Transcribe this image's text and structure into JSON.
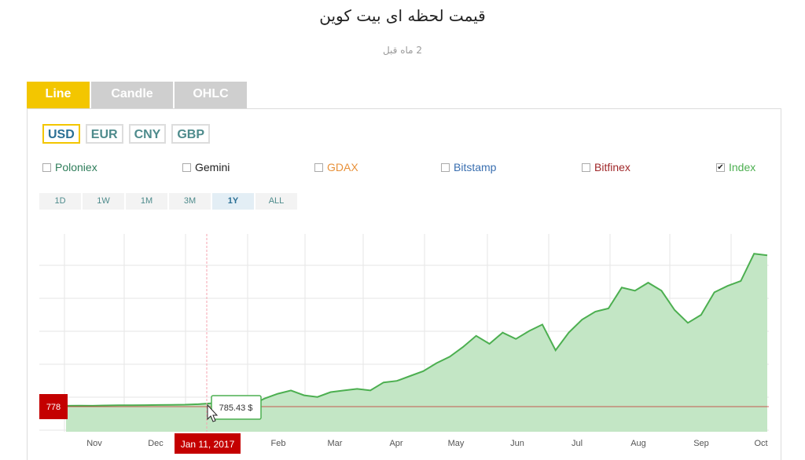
{
  "header": {
    "title": "قیمت لحظه ای بیت کوین",
    "subtitle": "2 ماه قبل"
  },
  "tabs": [
    {
      "label": "Line"
    },
    {
      "label": "Candle"
    },
    {
      "label": "OHLC"
    }
  ],
  "currencies": [
    {
      "label": "USD"
    },
    {
      "label": "EUR"
    },
    {
      "label": "CNY"
    },
    {
      "label": "GBP"
    }
  ],
  "exchanges": [
    {
      "label": "Poloniex",
      "checked": false,
      "color": "#2e7d5a"
    },
    {
      "label": "Gemini",
      "checked": false,
      "color": "#222222"
    },
    {
      "label": "GDAX",
      "checked": false,
      "color": "#e8913a"
    },
    {
      "label": "Bitstamp",
      "checked": false,
      "color": "#3a6fb0"
    },
    {
      "label": "Bitfinex",
      "checked": false,
      "color": "#a0282a"
    },
    {
      "label": "Index",
      "checked": true,
      "check_mark": "✔",
      "color": "#4caf50"
    }
  ],
  "ranges": [
    {
      "label": "1D"
    },
    {
      "label": "1W"
    },
    {
      "label": "1M"
    },
    {
      "label": "3M"
    },
    {
      "label": "1Y"
    },
    {
      "label": "ALL"
    }
  ],
  "colors": {
    "accent": "#f3c600",
    "line": "#4caf50",
    "fill": "#c3e6c5",
    "marker": "#c40000"
  },
  "chart_data": {
    "type": "area",
    "x_tick_labels": [
      "Nov",
      "Dec",
      "Jan 11, 2017",
      "Feb",
      "Mar",
      "Apr",
      "May",
      "Jun",
      "Jul",
      "Aug",
      "Sep",
      "Oct"
    ],
    "highlighted_x_label": "Jan 11, 2017",
    "price_marker": "778",
    "tooltip": "785.43 $",
    "series": [
      {
        "values": [
          0.015,
          0.016,
          0.015,
          0.017,
          0.018,
          0.018,
          0.019,
          0.02,
          0.021,
          0.022,
          0.025,
          0.03,
          0.05,
          0.07,
          0.02,
          0.06,
          0.09,
          0.11,
          0.08,
          0.07,
          0.1,
          0.11,
          0.12,
          0.11,
          0.16,
          0.17,
          0.2,
          0.23,
          0.28,
          0.32,
          0.38,
          0.45,
          0.4,
          0.47,
          0.43,
          0.48,
          0.52,
          0.36,
          0.47,
          0.55,
          0.6,
          0.62,
          0.75,
          0.73,
          0.78,
          0.73,
          0.61,
          0.53,
          0.58,
          0.72,
          0.76,
          0.79,
          0.96,
          0.95
        ]
      }
    ]
  }
}
